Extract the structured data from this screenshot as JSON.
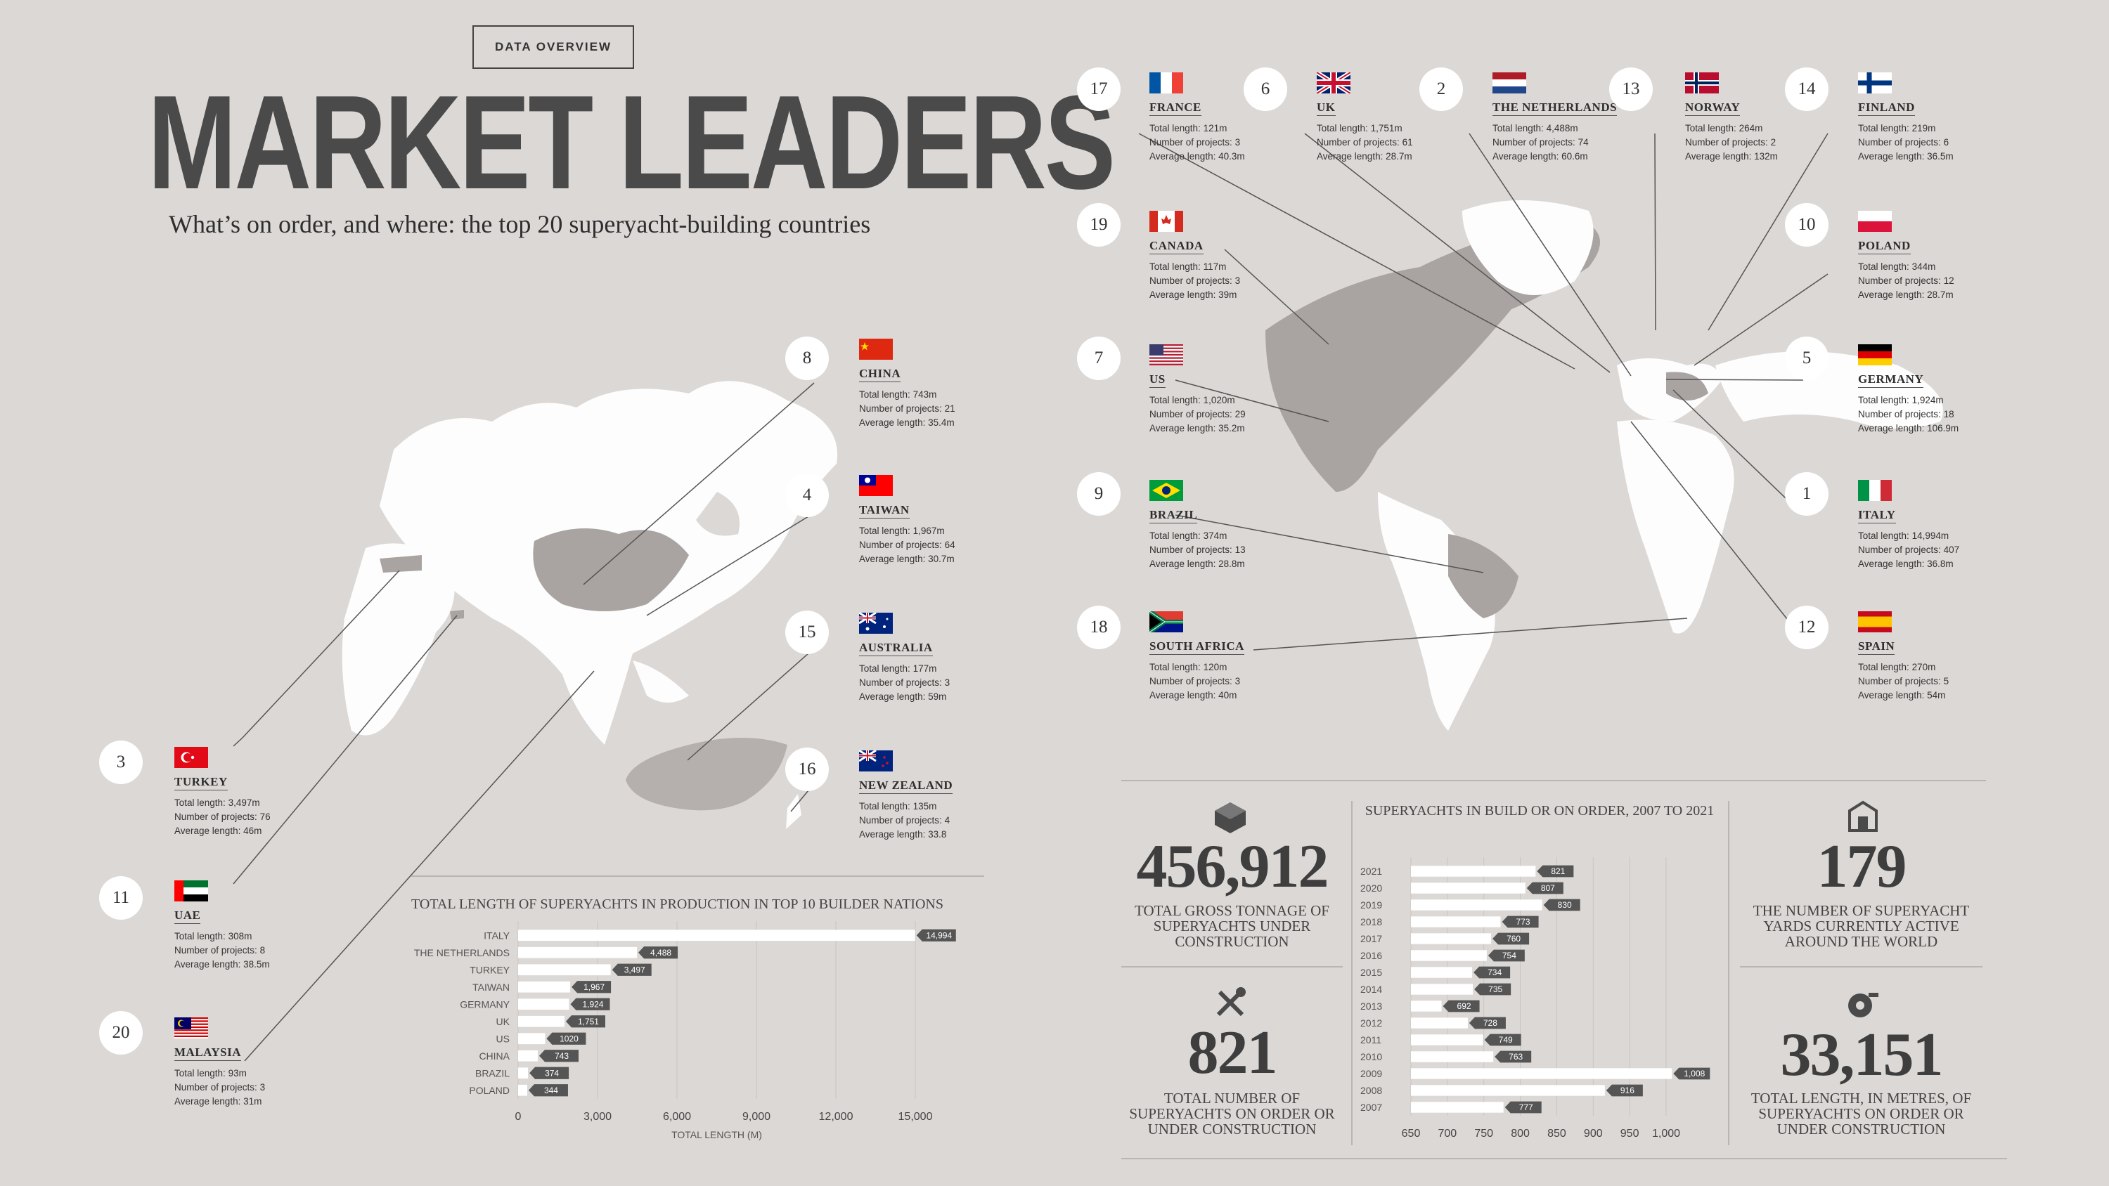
{
  "header": {
    "tag": "DATA OVERVIEW",
    "title": "MARKET LEADERS",
    "subtitle": "What’s on order, and where: the top 20 superyacht-building countries"
  },
  "stat_labels": {
    "total": "Total length:",
    "projects": "Number of projects:",
    "average": "Average length:"
  },
  "countries": [
    {
      "rank": "8",
      "name": "CHINA",
      "total": "743m",
      "projects": "21",
      "average": "35.4m",
      "flag": "china-flag"
    },
    {
      "rank": "4",
      "name": "TAIWAN",
      "total": "1,967m",
      "projects": "64",
      "average": "30.7m",
      "flag": "taiwan-flag"
    },
    {
      "rank": "15",
      "name": "AUSTRALIA",
      "total": "177m",
      "projects": "3",
      "average": "59m",
      "flag": "australia-flag"
    },
    {
      "rank": "16",
      "name": "NEW ZEALAND",
      "total": "135m",
      "projects": "4",
      "average": "33.8",
      "flag": "new-zealand-flag"
    },
    {
      "rank": "3",
      "name": "TURKEY",
      "total": "3,497m",
      "projects": "76",
      "average": "46m",
      "flag": "turkey-flag"
    },
    {
      "rank": "11",
      "name": "UAE",
      "total": "308m",
      "projects": "8",
      "average": "38.5m",
      "flag": "uae-flag"
    },
    {
      "rank": "20",
      "name": "MALAYSIA",
      "total": "93m",
      "projects": "3",
      "average": "31m",
      "flag": "malaysia-flag"
    },
    {
      "rank": "17",
      "name": "FRANCE",
      "total": "121m",
      "projects": "3",
      "average": "40.3m",
      "flag": "france-flag"
    },
    {
      "rank": "6",
      "name": "UK",
      "total": "1,751m",
      "projects": "61",
      "average": "28.7m",
      "flag": "uk-flag"
    },
    {
      "rank": "2",
      "name": "THE NETHERLANDS",
      "total": "4,488m",
      "projects": "74",
      "average": "60.6m",
      "flag": "netherlands-flag"
    },
    {
      "rank": "13",
      "name": "NORWAY",
      "total": "264m",
      "projects": "2",
      "average": "132m",
      "flag": "norway-flag"
    },
    {
      "rank": "14",
      "name": "FINLAND",
      "total": "219m",
      "projects": "6",
      "average": "36.5m",
      "flag": "finland-flag"
    },
    {
      "rank": "19",
      "name": "CANADA",
      "total": "117m",
      "projects": "3",
      "average": "39m",
      "flag": "canada-flag"
    },
    {
      "rank": "10",
      "name": "POLAND",
      "total": "344m",
      "projects": "12",
      "average": "28.7m",
      "flag": "poland-flag"
    },
    {
      "rank": "7",
      "name": "US",
      "total": "1,020m",
      "projects": "29",
      "average": "35.2m",
      "flag": "us-flag"
    },
    {
      "rank": "5",
      "name": "GERMANY",
      "total": "1,924m",
      "projects": "18",
      "average": "106.9m",
      "flag": "germany-flag"
    },
    {
      "rank": "9",
      "name": "BRAZIL",
      "total": "374m",
      "projects": "13",
      "average": "28.8m",
      "flag": "brazil-flag"
    },
    {
      "rank": "1",
      "name": "ITALY",
      "total": "14,994m",
      "projects": "407",
      "average": "36.8m",
      "flag": "italy-flag"
    },
    {
      "rank": "18",
      "name": "SOUTH AFRICA",
      "total": "120m",
      "projects": "3",
      "average": "40m",
      "flag": "south-africa-flag"
    },
    {
      "rank": "12",
      "name": "SPAIN",
      "total": "270m",
      "projects": "5",
      "average": "54m",
      "flag": "spain-flag"
    }
  ],
  "stats": {
    "tonnage_value": "456,912",
    "tonnage_caption": "TOTAL GROSS TONNAGE OF SUPERYACHTS UNDER CONSTRUCTION",
    "orders_value": "821",
    "orders_caption": "TOTAL NUMBER OF SUPERYACHTS ON ORDER OR UNDER CONSTRUCTION",
    "yards_value": "179",
    "yards_caption": "THE NUMBER OF SUPERYACHT YARDS CURRENTLY ACTIVE AROUND THE WORLD",
    "length_value": "33,151",
    "length_caption": "TOTAL LENGTH, IN METRES, OF SUPERYACHTS ON ORDER OR UNDER CONSTRUCTION"
  },
  "chart_data": [
    {
      "type": "bar",
      "orientation": "horizontal",
      "title": "TOTAL LENGTH OF SUPERYACHTS IN PRODUCTION IN TOP 10 BUILDER NATIONS",
      "xlabel": "TOTAL LENGTH (M)",
      "ylabel": "",
      "categories": [
        "ITALY",
        "THE NETHERLANDS",
        "TURKEY",
        "TAIWAN",
        "GERMANY",
        "UK",
        "US",
        "CHINA",
        "BRAZIL",
        "POLAND"
      ],
      "values": [
        14994,
        4488,
        3497,
        1967,
        1924,
        1751,
        1020,
        743,
        374,
        344
      ],
      "value_labels": [
        "14,994",
        "4,488",
        "3,497",
        "1,967",
        "1,924",
        "1,751",
        "1020",
        "743",
        "374",
        "344"
      ],
      "xlim": [
        0,
        15000
      ],
      "xticks": [
        "0",
        "3,000",
        "6,000",
        "9,000",
        "12,000",
        "15,000"
      ],
      "grid": true,
      "bar_color": "#ffffff",
      "label_color": "#555555"
    },
    {
      "type": "bar",
      "orientation": "horizontal",
      "title": "SUPERYACHTS IN BUILD OR ON ORDER, 2007 TO 2021",
      "xlabel": "",
      "ylabel": "",
      "categories": [
        "2021",
        "2020",
        "2019",
        "2018",
        "2017",
        "2016",
        "2015",
        "2014",
        "2013",
        "2012",
        "2011",
        "2010",
        "2009",
        "2008",
        "2007"
      ],
      "values": [
        821,
        807,
        830,
        773,
        760,
        754,
        734,
        735,
        692,
        728,
        749,
        763,
        1008,
        916,
        777
      ],
      "value_labels": [
        "821",
        "807",
        "830",
        "773",
        "760",
        "754",
        "734",
        "735",
        "692",
        "728",
        "749",
        "763",
        "1,008",
        "916",
        "777"
      ],
      "xlim": [
        650,
        1000
      ],
      "xticks": [
        "650",
        "700",
        "750",
        "800",
        "850",
        "900",
        "950",
        "1,000"
      ],
      "grid": true,
      "bar_color": "#ffffff",
      "label_color": "#555555"
    }
  ]
}
